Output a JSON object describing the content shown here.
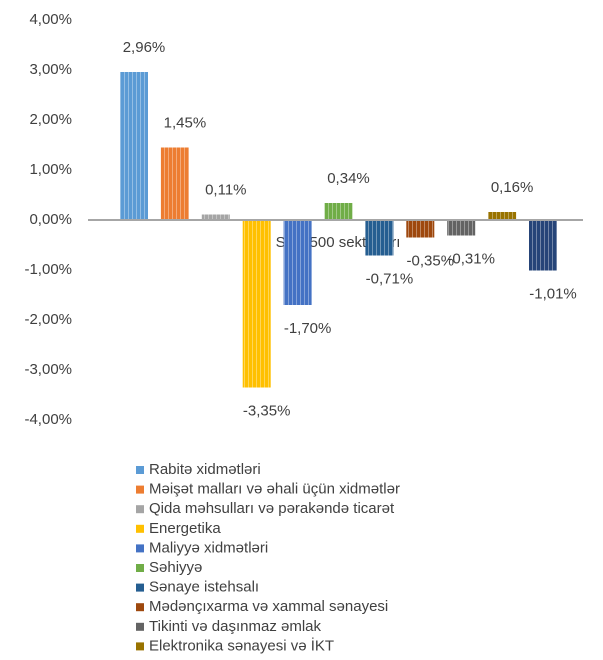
{
  "chart_data": {
    "type": "bar",
    "x_label": "S&P 500 sektorları",
    "categories": [
      "Rabitə xidmətləri",
      "Məişət malları və əhali üçün xidmətlər",
      "Qida məhsulları və pərakəndə ticarət",
      "Energetika",
      "Maliyyə xidmətləri",
      "Səhiyyə",
      "Sənaye istehsalı",
      "Mədənçıxarma və xammal sənayesi",
      "Tikinti və daşınmaz əmlak",
      "Elektronika sənayesi və İKT",
      null
    ],
    "values": [
      2.96,
      1.45,
      0.11,
      -3.35,
      -1.7,
      0.34,
      -0.71,
      -0.35,
      -0.31,
      0.16,
      -1.01
    ],
    "value_labels": [
      "2,96%",
      "1,45%",
      "0,11%",
      "-3,35%",
      "-1,70%",
      "0,34%",
      "-0,71%",
      "-0,35%",
      "-0,31%",
      "0,16%",
      "-1,01%"
    ],
    "colors": [
      "#5b9bd5",
      "#ed7d31",
      "#a5a5a5",
      "#ffc000",
      "#4472c4",
      "#70ad47",
      "#255e91",
      "#9e480e",
      "#636363",
      "#997300",
      "#264478"
    ],
    "ylim": [
      -4,
      4
    ],
    "yticks": [
      {
        "value": 4,
        "label": "4,00%"
      },
      {
        "value": 3,
        "label": "3,00%"
      },
      {
        "value": 2,
        "label": "2,00%"
      },
      {
        "value": 1,
        "label": "1,00%"
      },
      {
        "value": 0,
        "label": "0,00%"
      },
      {
        "value": -1,
        "label": "-1,00%"
      },
      {
        "value": -2,
        "label": "-2,00%"
      },
      {
        "value": -3,
        "label": "-3,00%"
      },
      {
        "value": -4,
        "label": "-4,00%"
      }
    ],
    "legend": "bottom"
  }
}
